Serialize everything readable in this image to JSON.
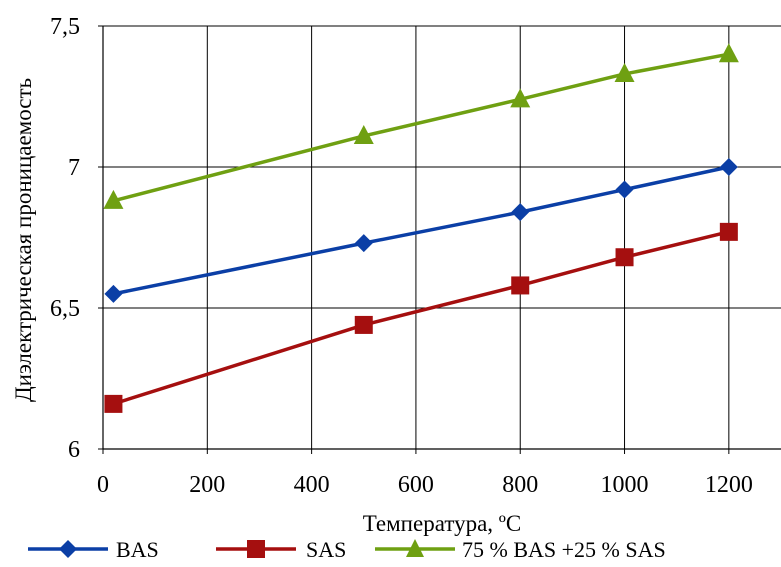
{
  "chart_data": {
    "type": "line",
    "xlabel": "Температура, ºС",
    "ylabel": "Диэлектрическая проницаемость",
    "xlim": [
      0,
      1300
    ],
    "ylim": [
      6,
      7.5
    ],
    "xticks": [
      0,
      200,
      400,
      600,
      800,
      1000,
      1200
    ],
    "yticks": [
      6,
      6.5,
      7,
      7.5
    ],
    "ytick_labels": [
      "6",
      "6,5",
      "7",
      "7,5"
    ],
    "grid": true,
    "legend_position": "bottom",
    "series": [
      {
        "name": "BAS",
        "color": "#0b3fa6",
        "marker": "diamond",
        "points": [
          [
            20,
            6.55
          ],
          [
            500,
            6.73
          ],
          [
            800,
            6.84
          ],
          [
            1000,
            6.92
          ],
          [
            1200,
            7.0
          ]
        ]
      },
      {
        "name": "SAS",
        "color": "#a50f0f",
        "marker": "square",
        "points": [
          [
            20,
            6.16
          ],
          [
            500,
            6.44
          ],
          [
            800,
            6.58
          ],
          [
            1000,
            6.68
          ],
          [
            1200,
            6.77
          ]
        ]
      },
      {
        "name": "75 % BAS +25 % SAS",
        "color": "#6fa012",
        "marker": "triangle",
        "points": [
          [
            20,
            6.88
          ],
          [
            500,
            7.11
          ],
          [
            800,
            7.24
          ],
          [
            1000,
            7.33
          ],
          [
            1200,
            7.4
          ]
        ]
      }
    ]
  }
}
